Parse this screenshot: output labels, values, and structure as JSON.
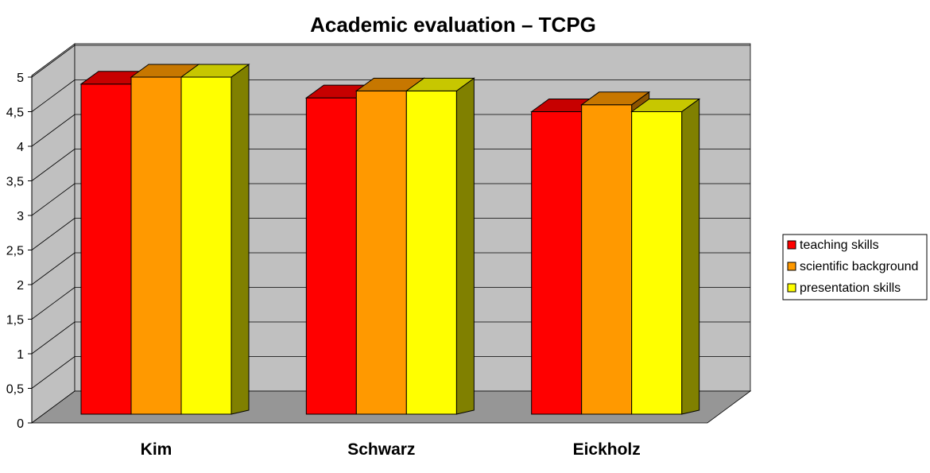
{
  "chart_data": {
    "type": "bar",
    "style": "3d-clustered",
    "title": "Academic evaluation – TCPG",
    "categories": [
      "Kim",
      "Schwarz",
      "Eickholz"
    ],
    "series": [
      {
        "name": "teaching skills",
        "color": "#ff0000",
        "values": [
          4.9,
          4.7,
          4.5
        ]
      },
      {
        "name": "scientific background",
        "color": "#ff9900",
        "values": [
          5.0,
          4.8,
          4.6
        ]
      },
      {
        "name": "presentation skills",
        "color": "#ffff00",
        "values": [
          5.0,
          4.8,
          4.5
        ]
      }
    ],
    "ylim": [
      0,
      5
    ],
    "yticks": [
      "0",
      "0,5",
      "1",
      "1,5",
      "2",
      "2,5",
      "3",
      "3,5",
      "4",
      "4,5",
      "5"
    ],
    "grid": true,
    "legend_position": "right",
    "colors": {
      "wall": "#c0c0c0",
      "floor": "#969696",
      "side_face": "#808000"
    }
  }
}
